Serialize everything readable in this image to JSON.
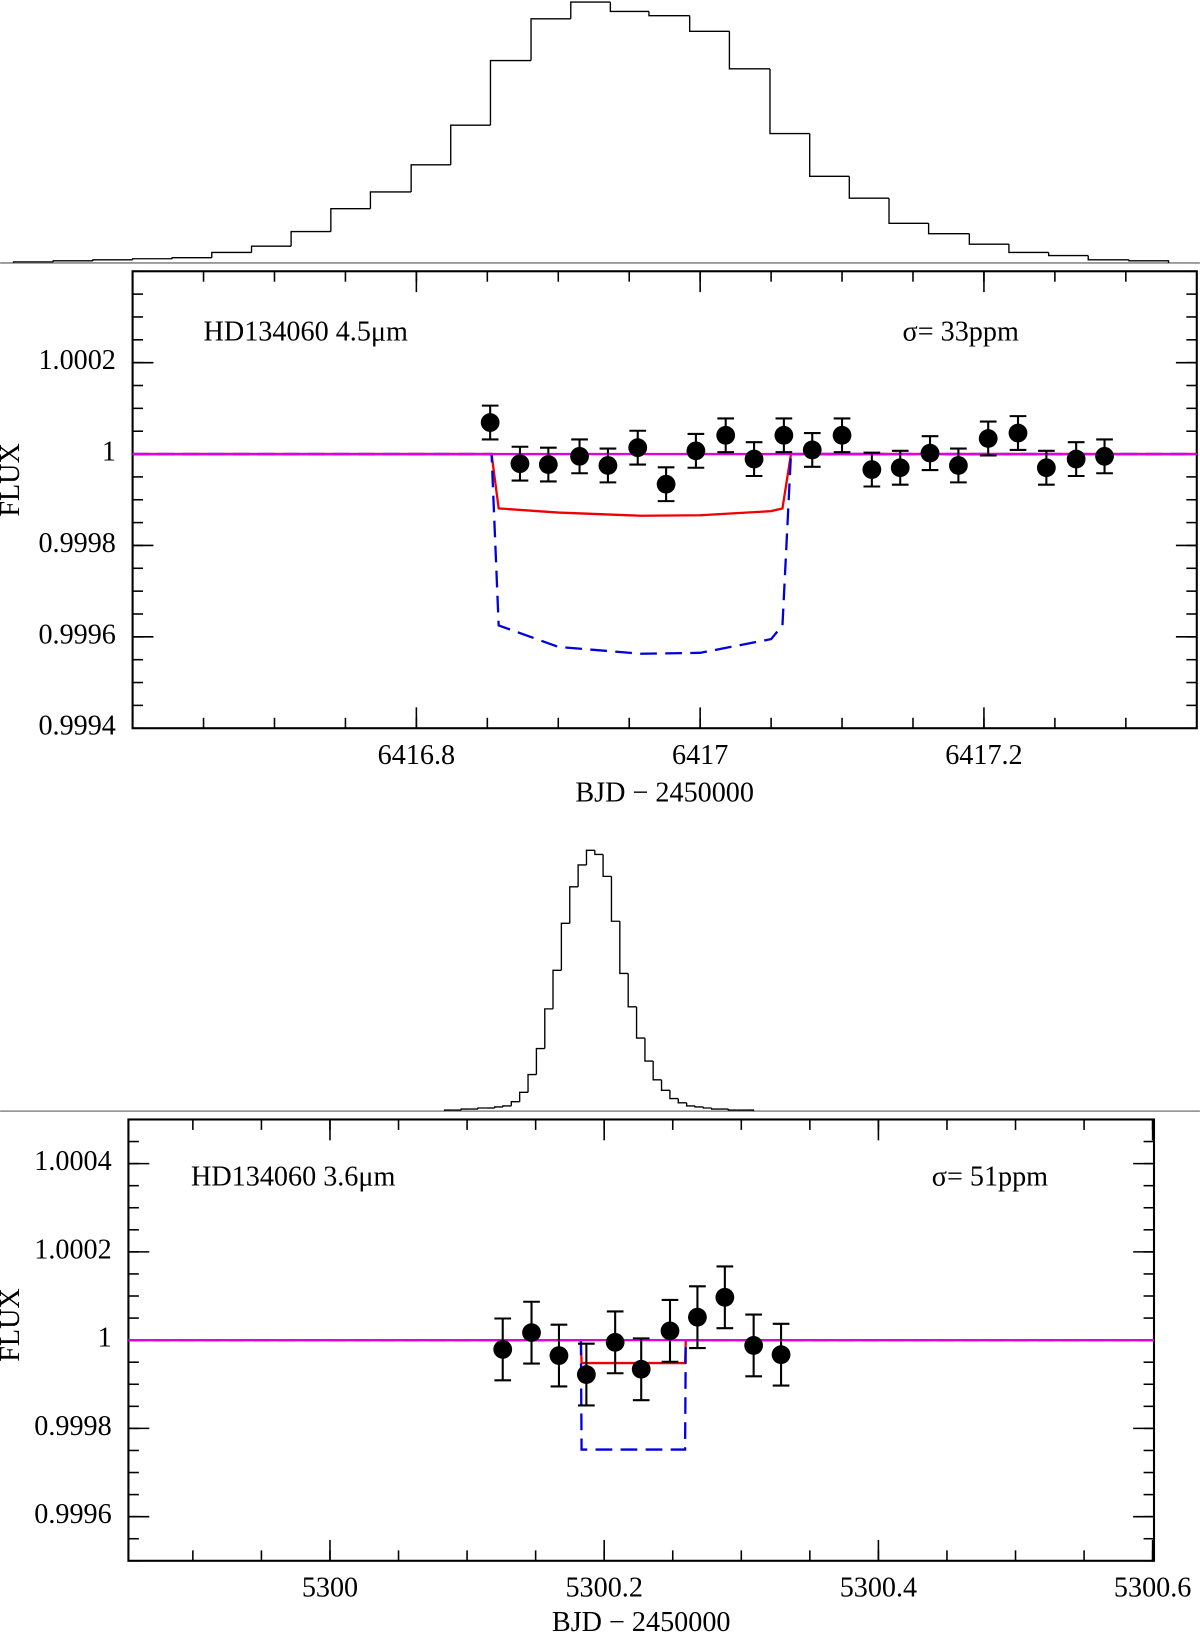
{
  "chart_data": [
    {
      "type": "histogram",
      "color": "#000000",
      "xlim": [
        6416.5059,
        6417.3515
      ],
      "ylim": [
        0,
        252
      ],
      "bins": [
        6416.5154,
        6416.5434,
        6416.5713,
        6416.5993,
        6416.6272,
        6416.6551,
        6416.6831,
        6416.711,
        6416.739,
        6416.7669,
        6416.7956,
        6416.8235,
        6416.8515,
        6416.8801,
        6416.9081,
        6416.936,
        6416.9632,
        6416.9919,
        6417.0199,
        6417.0485,
        6417.0765,
        6417.1044,
        6417.1324,
        6417.1603,
        6417.189,
        6417.2169,
        6417.2449,
        6417.2728,
        6417.3015,
        6417.3294
      ],
      "counts": [
        1,
        2,
        3,
        4,
        5,
        10,
        16,
        30,
        52,
        68,
        94,
        132,
        194,
        234,
        250,
        241,
        237,
        222,
        186,
        124,
        83,
        62,
        38,
        28,
        18,
        10,
        7,
        3,
        2
      ]
    },
    {
      "type": "scatter",
      "annotations": [
        "HD134060 4.5μm",
        "σ= 33ppm"
      ],
      "xlabel": "BJD − 2450000",
      "ylabel": "FLUX",
      "xlim": [
        6416.6,
        6417.35
      ],
      "ylim": [
        0.9994,
        1.0004
      ],
      "xticks": [
        6416.8,
        6417,
        6417.2
      ],
      "yticks": [
        0.9994,
        0.9996,
        0.9998,
        1,
        1.0002
      ],
      "points": {
        "color": "#000000",
        "x": [
          6416.852,
          6416.873,
          6416.893,
          6416.915,
          6416.935,
          6416.956,
          6416.976,
          6416.997,
          6417.018,
          6417.038,
          6417.059,
          6417.079,
          6417.1,
          6417.121,
          6417.141,
          6417.162,
          6417.182,
          6417.203,
          6417.224,
          6417.244,
          6417.265,
          6417.285
        ],
        "values": [
          1.000069,
          0.999979,
          0.999977,
          0.999995,
          0.999975,
          1.000014,
          0.999934,
          1.000007,
          1.000041,
          0.999989,
          1.000041,
          1.000009,
          1.000041,
          0.999966,
          0.99997,
          1.000002,
          0.999975,
          1.000034,
          1.000046,
          0.99997,
          0.999989,
          0.999995
        ],
        "error": 3.7e-05
      },
      "lines": [
        {
          "color": "#ee0000",
          "dashed": false,
          "x": [
            6416.6,
            6416.853,
            6416.858,
            6416.9,
            6416.958,
            6417.0,
            6417.05,
            6417.058,
            6417.064,
            6417.35
          ],
          "values": [
            1,
            1,
            0.999881,
            0.999872,
            0.999865,
            0.999866,
            0.999875,
            0.999881,
            1,
            1
          ]
        },
        {
          "color": "#0000dd",
          "dashed": true,
          "x": [
            6416.6,
            6416.853,
            6416.858,
            6416.9,
            6416.958,
            6417.0,
            6417.05,
            6417.058,
            6417.064,
            6417.35
          ],
          "values": [
            1,
            1,
            0.999625,
            0.999578,
            0.999563,
            0.999565,
            0.999595,
            0.999625,
            1,
            1
          ]
        },
        {
          "color": "#e000e0",
          "dashed": false,
          "x": [
            6416.6,
            6417.35
          ],
          "values": [
            1,
            1
          ]
        }
      ]
    },
    {
      "type": "histogram",
      "color": "#000000",
      "xlim": [
        5299.7597,
        5300.6342
      ],
      "ylim": [
        0,
        252
      ],
      "bins": [
        5300.0837,
        5300.0897,
        5300.0958,
        5300.1019,
        5300.108,
        5300.1141,
        5300.1202,
        5300.1262,
        5300.1323,
        5300.1384,
        5300.1445,
        5300.1506,
        5300.1567,
        5300.1627,
        5300.1688,
        5300.1749,
        5300.181,
        5300.1871,
        5300.1932,
        5300.1992,
        5300.2053,
        5300.2114,
        5300.2175,
        5300.2236,
        5300.2297,
        5300.2357,
        5300.2418,
        5300.2479,
        5300.254,
        5300.2601,
        5300.2662,
        5300.2723,
        5300.2783,
        5300.2844,
        5300.2905,
        5300.2966,
        5300.3027,
        5300.3088
      ],
      "counts": [
        1,
        1,
        2,
        2,
        3,
        3,
        4,
        5,
        9,
        18,
        35,
        60,
        98,
        135,
        180,
        215,
        236,
        250,
        246,
        225,
        182,
        132,
        100,
        70,
        48,
        30,
        20,
        12,
        8,
        5,
        4,
        3,
        2,
        2,
        1,
        1,
        1
      ]
    },
    {
      "type": "scatter",
      "annotations": [
        "HD134060 3.6μm",
        "σ= 51ppm"
      ],
      "xlabel": "BJD − 2450000",
      "ylabel": "FLUX",
      "xlim": [
        5299.853,
        5300.601
      ],
      "ylim": [
        0.9995,
        1.0005
      ],
      "xticks": [
        5300,
        5300.2,
        5300.4,
        5300.6
      ],
      "yticks": [
        0.9996,
        0.9998,
        1,
        1.0002,
        1.0004
      ],
      "points": {
        "color": "#000000",
        "x": [
          5300.126,
          5300.147,
          5300.167,
          5300.187,
          5300.208,
          5300.227,
          5300.248,
          5300.268,
          5300.288,
          5300.309,
          5300.329
        ],
        "values": [
          0.999979,
          1.000017,
          0.999965,
          0.999922,
          0.999995,
          0.999934,
          1.000021,
          1.000052,
          1.000097,
          0.999988,
          0.999967
        ],
        "error": 7e-05
      },
      "lines": [
        {
          "color": "#ee0000",
          "dashed": false,
          "x": [
            5299.853,
            5300.183,
            5300.1835,
            5300.259,
            5300.2595,
            5300.601
          ],
          "values": [
            1,
            1,
            0.999948,
            0.999948,
            1,
            1
          ]
        },
        {
          "color": "#0000dd",
          "dashed": true,
          "x": [
            5299.853,
            5300.183,
            5300.1835,
            5300.259,
            5300.2595,
            5300.601
          ],
          "values": [
            1,
            1,
            0.999752,
            0.999752,
            1,
            1
          ]
        },
        {
          "color": "#e000e0",
          "dashed": false,
          "x": [
            5299.853,
            5300.601
          ],
          "values": [
            1,
            1
          ]
        }
      ]
    }
  ]
}
